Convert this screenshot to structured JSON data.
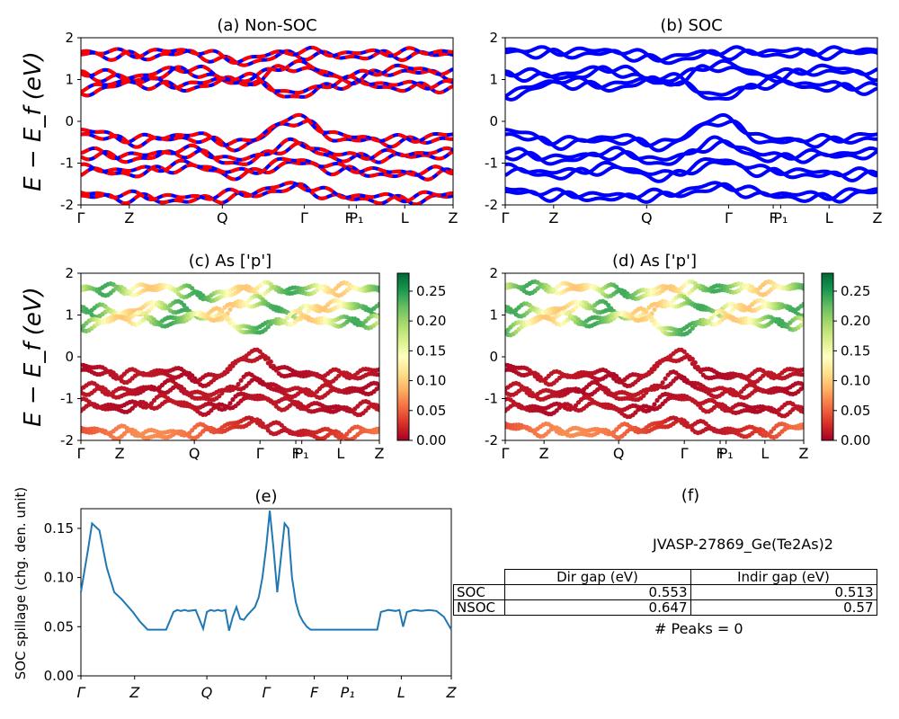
{
  "panels": {
    "a_title": "(a) Non-SOC",
    "b_title": "(b) SOC",
    "c_title": "(c)  As ['p']",
    "d_title": "(d) As ['p']",
    "e_title": "(e)",
    "f_title": "(f)"
  },
  "axes": {
    "band_ylabel": "E − E_f (eV)",
    "spillage_ylabel": "SOC spillage (chg. den. unit)",
    "band_yticks": [
      -2,
      -1,
      0,
      1,
      2
    ],
    "band_ylim": [
      -2,
      2
    ],
    "kpath_labels": [
      "Γ",
      "Z",
      "Q",
      "Γ",
      "F",
      "P₁",
      "L",
      "Z"
    ],
    "kpath_positions": [
      0,
      0.13,
      0.38,
      0.6,
      0.72,
      0.74,
      0.87,
      1.0
    ],
    "colorbar_ticks": [
      "0.00",
      "0.05",
      "0.10",
      "0.15",
      "0.20",
      "0.25"
    ],
    "spillage_yticks": [
      "0.00",
      "0.05",
      "0.10",
      "0.15"
    ],
    "spillage_ylim": [
      0,
      0.17
    ]
  },
  "colors": {
    "nonsoc_up": "#0000ff",
    "nonsoc_dn": "#ff0000",
    "soc": "#0000ff",
    "spillage_line": "#1f77b4"
  },
  "chart_data": [
    {
      "type": "line",
      "title": "(a) Non-SOC",
      "ylabel": "E − E_f (eV)",
      "ylim": [
        -2,
        2
      ],
      "series": [
        {
          "values": [
            1.6,
            1.55,
            1.62,
            1.4,
            1.6,
            1.55,
            1.58,
            1.6
          ]
        },
        {
          "values": [
            1.1,
            1.0,
            1.2,
            0.9,
            1.3,
            1.0,
            1.2,
            1.1
          ]
        },
        {
          "values": [
            0.7,
            0.9,
            0.8,
            1.0,
            0.6,
            0.9,
            0.8,
            0.8
          ]
        },
        {
          "values": [
            -0.3,
            -0.5,
            -0.4,
            -0.6,
            0.0,
            -0.45,
            -0.5,
            -0.4
          ]
        },
        {
          "values": [
            -0.8,
            -0.9,
            -0.75,
            -1.0,
            -0.6,
            -0.9,
            -0.85,
            -0.8
          ]
        },
        {
          "values": [
            -1.2,
            -1.25,
            -1.1,
            -1.3,
            -1.0,
            -1.2,
            -1.3,
            -1.25
          ]
        },
        {
          "values": [
            -1.8,
            -1.85,
            -1.9,
            -1.8,
            -1.6,
            -1.85,
            -1.9,
            -1.8
          ]
        }
      ]
    },
    {
      "type": "line",
      "title": "(b) SOC",
      "ylim": [
        -2,
        2
      ],
      "series": [
        {
          "values": [
            1.65,
            1.6,
            1.62,
            1.45,
            1.6,
            1.6,
            1.6,
            1.65
          ]
        },
        {
          "values": [
            1.1,
            1.05,
            1.2,
            0.9,
            1.3,
            1.05,
            1.2,
            1.1
          ]
        },
        {
          "values": [
            0.6,
            0.9,
            0.8,
            1.0,
            0.55,
            0.9,
            0.8,
            0.75
          ]
        },
        {
          "values": [
            -0.3,
            -0.55,
            -0.45,
            -0.6,
            0.0,
            -0.5,
            -0.5,
            -0.4
          ]
        },
        {
          "values": [
            -0.8,
            -0.95,
            -0.8,
            -1.0,
            -0.55,
            -0.9,
            -0.85,
            -0.8
          ]
        },
        {
          "values": [
            -1.2,
            -1.3,
            -1.15,
            -1.35,
            -1.0,
            -1.25,
            -1.3,
            -1.3
          ]
        },
        {
          "values": [
            -1.7,
            -1.8,
            -1.85,
            -1.8,
            -1.6,
            -1.8,
            -1.85,
            -1.7
          ]
        }
      ]
    },
    {
      "type": "scatter",
      "title": "(c)  As ['p']",
      "ylim": [
        -2,
        2
      ],
      "colorbar_range": [
        0,
        0.28
      ]
    },
    {
      "type": "scatter",
      "title": "(d) As ['p']",
      "ylim": [
        -2,
        2
      ],
      "colorbar_range": [
        0,
        0.28
      ]
    },
    {
      "type": "line",
      "title": "(e)",
      "ylabel": "SOC spillage (chg. den. unit)",
      "ylim": [
        0,
        0.17
      ],
      "x": [
        0,
        0.02,
        0.03,
        0.05,
        0.07,
        0.09,
        0.11,
        0.14,
        0.16,
        0.18,
        0.19,
        0.21,
        0.23,
        0.25,
        0.26,
        0.27,
        0.28,
        0.29,
        0.31,
        0.33,
        0.34,
        0.35,
        0.36,
        0.37,
        0.38,
        0.39,
        0.4,
        0.41,
        0.42,
        0.43,
        0.44,
        0.45,
        0.46,
        0.47,
        0.48,
        0.49,
        0.5,
        0.51,
        0.52,
        0.53,
        0.54,
        0.55,
        0.56,
        0.57,
        0.58,
        0.59,
        0.6,
        0.61,
        0.62,
        0.63,
        0.64,
        0.66,
        0.68,
        0.7,
        0.72,
        0.74,
        0.76,
        0.78,
        0.8,
        0.81,
        0.83,
        0.85,
        0.86,
        0.87,
        0.88,
        0.9,
        0.92,
        0.94,
        0.96,
        0.98,
        1.0
      ],
      "values": [
        0.085,
        0.13,
        0.155,
        0.148,
        0.11,
        0.085,
        0.078,
        0.065,
        0.055,
        0.047,
        0.047,
        0.047,
        0.047,
        0.065,
        0.067,
        0.066,
        0.067,
        0.066,
        0.067,
        0.048,
        0.065,
        0.067,
        0.066,
        0.067,
        0.066,
        0.067,
        0.046,
        0.06,
        0.07,
        0.058,
        0.057,
        0.062,
        0.066,
        0.07,
        0.08,
        0.1,
        0.13,
        0.168,
        0.13,
        0.085,
        0.12,
        0.155,
        0.15,
        0.1,
        0.075,
        0.062,
        0.055,
        0.05,
        0.047,
        0.047,
        0.047,
        0.047,
        0.047,
        0.047,
        0.047,
        0.047,
        0.047,
        0.047,
        0.047,
        0.065,
        0.067,
        0.066,
        0.067,
        0.05,
        0.065,
        0.067,
        0.066,
        0.067,
        0.066,
        0.06,
        0.047
      ],
      "color": "#1f77b4"
    },
    {
      "type": "table",
      "title": "(f)",
      "caption": "JVASP-27869_Ge(Te2As)2",
      "columns": [
        "Dir gap (eV)",
        "Indir gap (eV)"
      ],
      "rows": [
        {
          "label": "SOC",
          "values": [
            "0.553",
            "0.513"
          ]
        },
        {
          "label": "NSOC",
          "values": [
            "0.647",
            "0.57"
          ]
        }
      ],
      "footer": "# Peaks = 0"
    }
  ]
}
